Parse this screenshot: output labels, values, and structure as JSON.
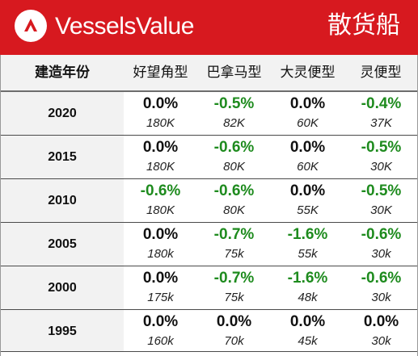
{
  "header": {
    "brand": "VesselsValue",
    "section_title": "散货船",
    "brand_color": "#d7191f"
  },
  "table": {
    "columns": [
      "建造年份",
      "好望角型",
      "巴拿马型",
      "大灵便型",
      "灵便型"
    ],
    "rows": [
      {
        "year": "2020",
        "cells": [
          {
            "pct": "0.0%",
            "size": "180K"
          },
          {
            "pct": "-0.5%",
            "size": "82K"
          },
          {
            "pct": "0.0%",
            "size": "60K"
          },
          {
            "pct": "-0.4%",
            "size": "37K"
          }
        ]
      },
      {
        "year": "2015",
        "cells": [
          {
            "pct": "0.0%",
            "size": "180K"
          },
          {
            "pct": "-0.6%",
            "size": "80K"
          },
          {
            "pct": "0.0%",
            "size": "60K"
          },
          {
            "pct": "-0.5%",
            "size": "30K"
          }
        ]
      },
      {
        "year": "2010",
        "cells": [
          {
            "pct": "-0.6%",
            "size": "180K"
          },
          {
            "pct": "-0.6%",
            "size": "80K"
          },
          {
            "pct": "0.0%",
            "size": "55K"
          },
          {
            "pct": "-0.5%",
            "size": "30K"
          }
        ]
      },
      {
        "year": "2005",
        "cells": [
          {
            "pct": "0.0%",
            "size": "180k"
          },
          {
            "pct": "-0.7%",
            "size": "75k"
          },
          {
            "pct": "-1.6%",
            "size": "55k"
          },
          {
            "pct": "-0.6%",
            "size": "30k"
          }
        ]
      },
      {
        "year": "2000",
        "cells": [
          {
            "pct": "0.0%",
            "size": "175k"
          },
          {
            "pct": "-0.7%",
            "size": "75k"
          },
          {
            "pct": "-1.6%",
            "size": "48k"
          },
          {
            "pct": "-0.6%",
            "size": "30k"
          }
        ]
      },
      {
        "year": "1995",
        "cells": [
          {
            "pct": "0.0%",
            "size": "160k"
          },
          {
            "pct": "0.0%",
            "size": "70k"
          },
          {
            "pct": "0.0%",
            "size": "45k"
          },
          {
            "pct": "0.0%",
            "size": "30k"
          }
        ]
      }
    ],
    "negative_color": "#1e8b1e"
  }
}
